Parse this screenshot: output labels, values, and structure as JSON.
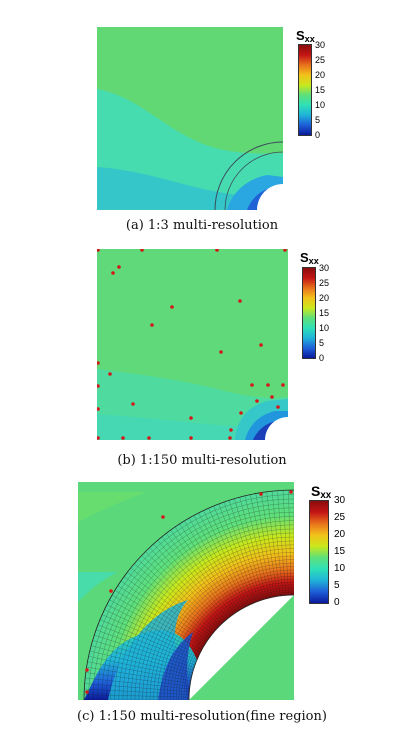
{
  "figures": [
    {
      "caption": "(a) 1:3 multi-resolution",
      "colorbar": {
        "title": "S",
        "subscript": "xx",
        "ticks": [
          "30",
          "25",
          "20",
          "15",
          "10",
          "5",
          "0"
        ]
      }
    },
    {
      "caption": "(b) 1:150 multi-resolution",
      "colorbar": {
        "title": "S",
        "subscript": "xx",
        "ticks": [
          "30",
          "25",
          "20",
          "15",
          "10",
          "5",
          "0"
        ]
      }
    },
    {
      "caption": "(c) 1:150 multi-resolution(fine region)",
      "colorbar": {
        "title": "S",
        "subscript": "xx",
        "ticks": [
          "30",
          "25",
          "20",
          "15",
          "10",
          "5",
          "0"
        ]
      }
    }
  ],
  "colors": {
    "scale": [
      "#0a1a9c",
      "#1e5fd8",
      "#1fb3d8",
      "#2fe0b8",
      "#5ee07a",
      "#c9e81c",
      "#f2c21a",
      "#e8721c",
      "#c41414",
      "#8a0c0c"
    ],
    "green_field": "#6ad86e",
    "cyan_field": "#45d9b0",
    "teal_field": "#33c8c4",
    "node_red": "#d21a1a"
  }
}
